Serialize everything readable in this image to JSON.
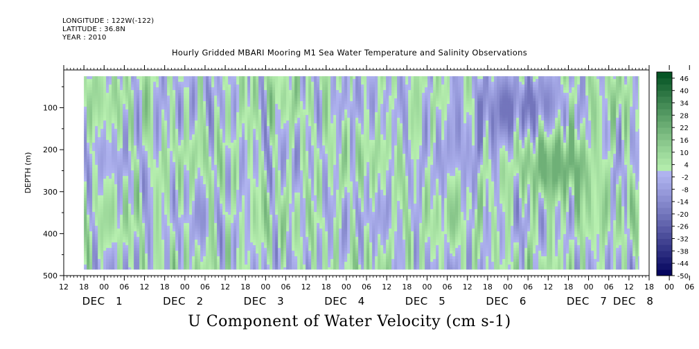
{
  "header": {
    "longitude": "LONGITUDE : 122W(-122)",
    "latitude": "LATITUDE : 36.8N",
    "year": "YEAR : 2010"
  },
  "chart_data": {
    "type": "heatmap",
    "title": "Hourly Gridded MBARI Mooring M1 Sea Water Temperature and Salinity Observations",
    "bottom_title": "U Component of Water Velocity (cm s-1)",
    "ylabel": "DEPTH (m)",
    "ylim": [
      500,
      10
    ],
    "y_ticks": [
      100,
      200,
      300,
      400,
      500
    ],
    "y_data_range": [
      25,
      485
    ],
    "x_hour_labels": [
      "12",
      "18",
      "00",
      "06",
      "12",
      "18",
      "00",
      "06",
      "12",
      "18",
      "00",
      "06",
      "12",
      "18",
      "00",
      "06",
      "12",
      "18",
      "00",
      "06",
      "12",
      "18",
      "00",
      "06",
      "12",
      "18",
      "00",
      "06",
      "12",
      "18",
      "00",
      "06"
    ],
    "x_day_labels": [
      "DEC 1",
      "DEC 2",
      "DEC 3",
      "DEC 4",
      "DEC 5",
      "DEC 6",
      "DEC 7",
      "DEC 8"
    ],
    "x_range_days": [
      0.375,
      7.625
    ],
    "x_data_range_days": [
      0.625,
      7.5
    ],
    "colorbar": {
      "labels": [
        "46",
        "40",
        "34",
        "28",
        "22",
        "16",
        "10",
        "4",
        "-2",
        "-8",
        "-14",
        "-20",
        "-26",
        "-32",
        "-38",
        "-44",
        "-50"
      ],
      "levels": [
        -50,
        -47,
        -44,
        -41,
        -38,
        -35,
        -32,
        -29,
        -26,
        -23,
        -20,
        -17,
        -14,
        -11,
        -8,
        -5,
        -2,
        1,
        4,
        7,
        10,
        13,
        16,
        19,
        22,
        25,
        28,
        31,
        34,
        37,
        40,
        43,
        46,
        49
      ],
      "color_low": "#00005a",
      "color_mid_neg": "#b0b4f0",
      "color_mid_pos": "#b8f0b0",
      "color_high": "#004f20"
    },
    "value_range_shown": [
      -20,
      22
    ],
    "features": [
      {
        "description_from_plot": "strong positive band",
        "x_days": [
          6.1,
          7.0
        ],
        "depth": [
          150,
          330
        ],
        "value": 18
      },
      {
        "description_from_plot": "negative band near surface",
        "x_days": [
          5.1,
          6.5
        ],
        "depth": [
          25,
          200
        ],
        "value": -14
      }
    ]
  }
}
